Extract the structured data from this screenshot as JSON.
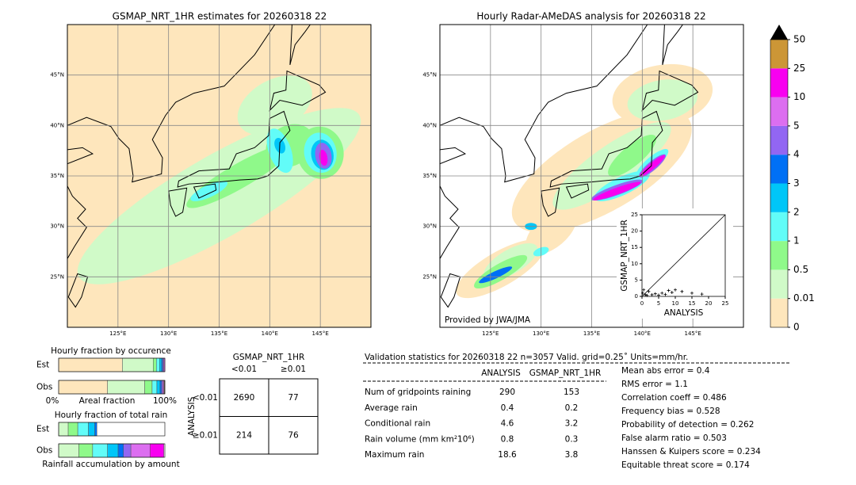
{
  "left_map": {
    "title": "GSMAP_NRT_1HR estimates for 20260318 22",
    "xlim": [
      120,
      150
    ],
    "ylim": [
      20,
      50
    ],
    "xticks": [
      {
        "value": 125,
        "label": "125°E"
      },
      {
        "value": 130,
        "label": "130°E"
      },
      {
        "value": 135,
        "label": "135°E"
      },
      {
        "value": 140,
        "label": "140°E"
      },
      {
        "value": 145,
        "label": "145°E"
      }
    ],
    "yticks": [
      {
        "value": 25,
        "label": "25°N"
      },
      {
        "value": 30,
        "label": "30°N"
      },
      {
        "value": 35,
        "label": "35°N"
      },
      {
        "value": 40,
        "label": "40°N"
      },
      {
        "value": 45,
        "label": "45°N"
      }
    ]
  },
  "right_map": {
    "title": "Hourly Radar-AMeDAS analysis for 20260318 22",
    "credit": "Provided by JWA/JMA",
    "xlim": [
      120,
      150
    ],
    "ylim": [
      20,
      50
    ],
    "xticks": [
      {
        "value": 125,
        "label": "125°E"
      },
      {
        "value": 130,
        "label": "130°E"
      },
      {
        "value": 135,
        "label": "135°E"
      },
      {
        "value": 140,
        "label": "140°E"
      },
      {
        "value": 145,
        "label": "145°E"
      }
    ],
    "yticks": [
      {
        "value": 25,
        "label": "25°N"
      },
      {
        "value": 30,
        "label": "30°N"
      },
      {
        "value": 35,
        "label": "35°N"
      },
      {
        "value": 40,
        "label": "40°N"
      },
      {
        "value": 45,
        "label": "45°N"
      }
    ]
  },
  "colorbar": {
    "ticks": [
      0,
      0.01,
      0.5,
      1,
      2,
      3,
      4,
      5,
      10,
      25,
      50
    ],
    "colors": [
      "#fee6bc",
      "#d0fac8",
      "#8ff98a",
      "#62fcf8",
      "#00c6f8",
      "#0070f5",
      "#9266f2",
      "#dc6ef0",
      "#f800f0",
      "#cc9636"
    ],
    "extend_color": "#000000"
  },
  "scatter": {
    "xlabel": "ANALYSIS",
    "ylabel": "GSMAP_NRT_1HR",
    "xlim": [
      0,
      25
    ],
    "ylim": [
      0,
      25
    ],
    "xticks": [
      0,
      5,
      10,
      15,
      20,
      25
    ],
    "yticks": [
      0,
      5,
      10,
      15,
      20,
      25
    ],
    "x": [
      0.2,
      0.5,
      1,
      1.5,
      2,
      3,
      4,
      5,
      6,
      7,
      8,
      9,
      10,
      12,
      15,
      18
    ],
    "y": [
      1,
      2,
      0.5,
      0.3,
      1.5,
      0.5,
      0.8,
      0.4,
      1,
      0.6,
      1.8,
      1.2,
      2,
      1.5,
      1,
      0.7
    ]
  },
  "occurrence": {
    "title": "Hourly fraction by occurence",
    "rows": [
      "Est",
      "Obs"
    ],
    "left_label": "0%",
    "center_label": "Areal fraction",
    "right_label": "100%",
    "est": [
      0.6,
      0.29,
      0.03,
      0.03,
      0.02,
      0.01,
      0.01,
      0.01,
      0,
      0
    ],
    "obs": [
      0.46,
      0.35,
      0.07,
      0.045,
      0.03,
      0.015,
      0.01,
      0.01,
      0.005,
      0.005
    ]
  },
  "total_rain": {
    "title": "Hourly fraction of total rain",
    "rows": [
      "Est",
      "Obs"
    ],
    "xlabel": "Rainfall accumulation by amount",
    "est": [
      0,
      0.09,
      0.09,
      0.1,
      0.06,
      0.02,
      0,
      0,
      0,
      0
    ],
    "obs": [
      0,
      0.19,
      0.13,
      0.14,
      0.1,
      0.05,
      0.07,
      0.18,
      0.13,
      0
    ]
  },
  "contingency": {
    "title": "GSMAP_NRT_1HR",
    "columns": [
      "<0.01",
      "≥0.01"
    ],
    "row_title": "ANALYSIS",
    "rows": [
      "<0.01",
      "≥0.01"
    ],
    "cells": [
      [
        2690,
        77
      ],
      [
        214,
        76
      ]
    ]
  },
  "validation": {
    "header": "Validation statistics for 20260318 22  n=3057 Valid. grid=0.25˚ Units=mm/hr.",
    "columns": [
      "ANALYSIS",
      "GSMAP_NRT_1HR"
    ],
    "rows": [
      [
        "Num of gridpoints raining",
        290,
        153
      ],
      [
        "Average rain",
        0.4,
        0.2
      ],
      [
        "Conditional rain",
        4.6,
        3.2
      ],
      [
        "Rain volume (mm km²10⁶)",
        0.8,
        0.3
      ],
      [
        "Maximum rain",
        18.6,
        3.8
      ]
    ],
    "scores": [
      "Mean abs error =    0.4",
      "RMS error =    1.1",
      "Correlation coeff =  0.486",
      "Frequency bias =  0.528",
      "Probability of detection =  0.262",
      "False alarm ratio =  0.503",
      "Hanssen & Kuipers score =  0.234",
      "Equitable threat score =  0.174"
    ]
  }
}
